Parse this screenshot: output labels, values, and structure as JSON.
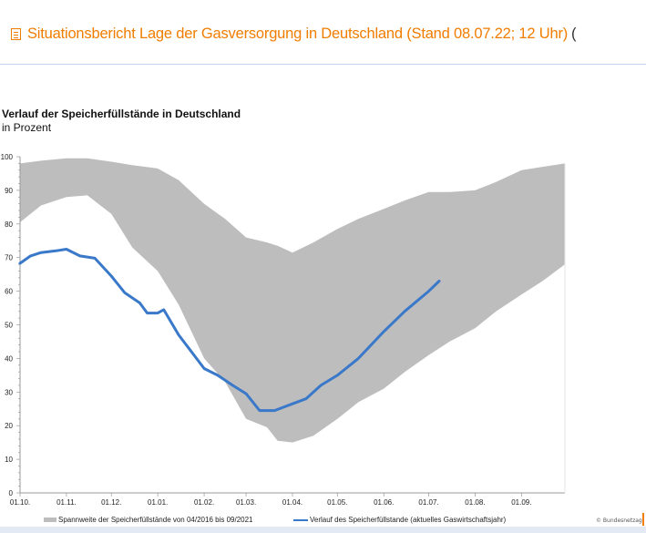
{
  "header": {
    "title": "Situationsbericht Lage der Gasversorgung in Deutschland (Stand 08.07.22; 12 Uhr)",
    "trailing": "(",
    "icon": "document-list-icon",
    "accent": "#f07d00"
  },
  "chart_data": {
    "type": "area",
    "title": "Verlauf der Speicherfüllstände in Deutschland",
    "subtitle": "in Prozent",
    "ylim": [
      0,
      100
    ],
    "yticks": [
      0,
      10,
      20,
      30,
      40,
      50,
      60,
      70,
      80,
      90,
      100
    ],
    "xlim": [
      "01.10.21",
      "30.09.22"
    ],
    "xticks": [
      "01.10.",
      "01.11.",
      "01.12.",
      "01.01.",
      "01.02.",
      "01.03.",
      "01.04.",
      "01.05.",
      "01.06.",
      "01.07.",
      "01.08.",
      "01.09."
    ],
    "grid": false,
    "legend_position": "bottom",
    "band": {
      "name": "Spannweite der Speicherfüllstände von 04/2016 bis 09/2021",
      "color": "#bdbdbd",
      "x": [
        "01.10.21",
        "15.10.21",
        "01.11.21",
        "15.11.21",
        "01.12.21",
        "15.12.21",
        "01.01.22",
        "15.01.22",
        "01.02.22",
        "15.02.22",
        "01.03.22",
        "15.03.22",
        "22.03.22",
        "01.04.22",
        "15.04.22",
        "01.05.22",
        "15.05.22",
        "01.06.22",
        "15.06.22",
        "01.07.22",
        "15.07.22",
        "01.08.22",
        "15.08.22",
        "01.09.22",
        "15.09.22",
        "30.09.22"
      ],
      "upper": [
        98,
        98.8,
        99.5,
        99.5,
        98.5,
        97.5,
        96.5,
        93,
        86,
        81.5,
        76,
        74.5,
        73.5,
        71.5,
        74.5,
        78.5,
        81.5,
        84.5,
        87,
        89.5,
        89.5,
        90,
        92.5,
        96,
        97,
        98
      ],
      "lower": [
        80.5,
        85.5,
        88,
        88.5,
        83,
        73,
        66,
        56,
        40,
        33,
        22,
        19.5,
        15.5,
        15,
        17,
        22,
        27,
        31,
        36,
        41,
        45,
        49,
        54,
        59,
        63,
        68
      ]
    },
    "series": [
      {
        "name": "Verlauf des Speicherfüllstande (aktuelles Gaswirtschaftsjahr)",
        "color": "#3a78c9",
        "x": [
          "01.10.21",
          "08.10.21",
          "15.10.21",
          "25.10.21",
          "01.11.21",
          "10.11.21",
          "20.11.21",
          "01.12.21",
          "10.12.21",
          "20.12.21",
          "25.12.21",
          "01.01.22",
          "05.01.22",
          "15.01.22",
          "01.02.22",
          "10.02.22",
          "20.02.22",
          "01.03.22",
          "10.03.22",
          "20.03.22",
          "01.04.22",
          "10.04.22",
          "20.04.22",
          "01.05.22",
          "15.05.22",
          "01.06.22",
          "15.06.22",
          "01.07.22",
          "08.07.22"
        ],
        "y": [
          68.3,
          70.5,
          71.5,
          72,
          72.5,
          70.5,
          69.8,
          64.5,
          59.5,
          56.5,
          53.5,
          53.5,
          54.5,
          47,
          37,
          35,
          32,
          29.5,
          24.5,
          24.5,
          26.5,
          28,
          32,
          35,
          40,
          48,
          54,
          60,
          63
        ]
      }
    ]
  },
  "footer": {
    "copyright": "© Bundesnetzag"
  }
}
